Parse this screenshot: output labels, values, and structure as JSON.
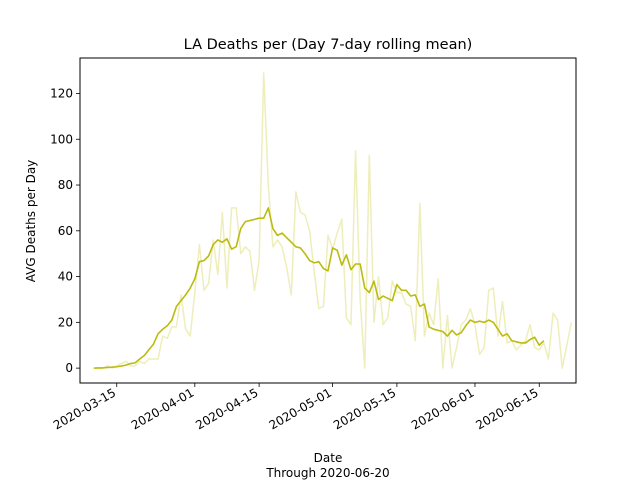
{
  "chart_data": {
    "type": "line",
    "title": "LA Deaths per (Day 7-day rolling mean)",
    "xlabel": "Date",
    "xlabel_sub": "Through 2020-06-20",
    "ylabel": "AVG Deaths per Day",
    "xlim": [
      "2020-03-07",
      "2020-06-23"
    ],
    "ylim": [
      -6.5,
      135.5
    ],
    "x_ticks": [
      "2020-03-15",
      "2020-04-01",
      "2020-04-15",
      "2020-05-01",
      "2020-05-15",
      "2020-06-01",
      "2020-06-15"
    ],
    "y_ticks": [
      0,
      20,
      40,
      60,
      80,
      100,
      120
    ],
    "grid": false,
    "legend": "none",
    "series": [
      {
        "color": "#eeeebb",
        "points": [
          [
            "2020-03-10",
            0
          ],
          [
            "2020-03-11",
            0
          ],
          [
            "2020-03-12",
            0
          ],
          [
            "2020-03-13",
            1
          ],
          [
            "2020-03-14",
            0
          ],
          [
            "2020-03-15",
            1
          ],
          [
            "2020-03-16",
            2
          ],
          [
            "2020-03-17",
            3
          ],
          [
            "2020-03-18",
            1
          ],
          [
            "2020-03-19",
            1
          ],
          [
            "2020-03-20",
            3
          ],
          [
            "2020-03-21",
            2
          ],
          [
            "2020-03-22",
            4
          ],
          [
            "2020-03-23",
            4
          ],
          [
            "2020-03-24",
            4
          ],
          [
            "2020-03-25",
            14
          ],
          [
            "2020-03-26",
            13
          ],
          [
            "2020-03-27",
            18
          ],
          [
            "2020-03-28",
            18
          ],
          [
            "2020-03-29",
            32
          ],
          [
            "2020-03-30",
            17
          ],
          [
            "2020-03-31",
            14
          ],
          [
            "2020-04-01",
            33
          ],
          [
            "2020-04-02",
            54
          ],
          [
            "2020-04-03",
            34
          ],
          [
            "2020-04-04",
            37
          ],
          [
            "2020-04-05",
            56
          ],
          [
            "2020-04-06",
            41
          ],
          [
            "2020-04-07",
            68
          ],
          [
            "2020-04-08",
            35
          ],
          [
            "2020-04-09",
            70
          ],
          [
            "2020-04-10",
            70
          ],
          [
            "2020-04-11",
            50
          ],
          [
            "2020-04-12",
            53
          ],
          [
            "2020-04-13",
            51
          ],
          [
            "2020-04-14",
            34
          ],
          [
            "2020-04-15",
            47
          ],
          [
            "2020-04-16",
            129
          ],
          [
            "2020-04-17",
            80
          ],
          [
            "2020-04-18",
            53
          ],
          [
            "2020-04-19",
            56
          ],
          [
            "2020-04-20",
            53
          ],
          [
            "2020-04-21",
            44
          ],
          [
            "2020-04-22",
            32
          ],
          [
            "2020-04-23",
            77
          ],
          [
            "2020-04-24",
            68
          ],
          [
            "2020-04-25",
            67
          ],
          [
            "2020-04-26",
            60
          ],
          [
            "2020-04-27",
            42
          ],
          [
            "2020-04-28",
            26
          ],
          [
            "2020-04-29",
            27
          ],
          [
            "2020-04-30",
            58
          ],
          [
            "2020-05-01",
            52
          ],
          [
            "2020-05-02",
            59
          ],
          [
            "2020-05-03",
            65
          ],
          [
            "2020-05-04",
            22
          ],
          [
            "2020-05-05",
            19
          ],
          [
            "2020-05-06",
            95
          ],
          [
            "2020-05-07",
            30
          ],
          [
            "2020-05-08",
            0
          ],
          [
            "2020-05-09",
            93
          ],
          [
            "2020-05-10",
            20
          ],
          [
            "2020-05-11",
            40
          ],
          [
            "2020-05-12",
            19
          ],
          [
            "2020-05-13",
            22
          ],
          [
            "2020-05-14",
            38
          ],
          [
            "2020-05-15",
            33
          ],
          [
            "2020-05-16",
            33
          ],
          [
            "2020-05-17",
            28
          ],
          [
            "2020-05-18",
            27
          ],
          [
            "2020-05-19",
            12
          ],
          [
            "2020-05-20",
            72
          ],
          [
            "2020-05-21",
            14
          ],
          [
            "2020-05-22",
            24
          ],
          [
            "2020-05-23",
            19
          ],
          [
            "2020-05-24",
            39
          ],
          [
            "2020-05-25",
            0
          ],
          [
            "2020-05-26",
            23
          ],
          [
            "2020-05-27",
            0
          ],
          [
            "2020-05-28",
            9
          ],
          [
            "2020-05-29",
            19
          ],
          [
            "2020-05-30",
            21
          ],
          [
            "2020-05-31",
            26
          ],
          [
            "2020-06-01",
            19
          ],
          [
            "2020-06-02",
            6
          ],
          [
            "2020-06-03",
            9
          ],
          [
            "2020-06-04",
            34
          ],
          [
            "2020-06-05",
            35
          ],
          [
            "2020-06-06",
            14
          ],
          [
            "2020-06-07",
            29
          ],
          [
            "2020-06-08",
            11
          ],
          [
            "2020-06-09",
            12
          ],
          [
            "2020-06-10",
            8
          ],
          [
            "2020-06-11",
            10
          ],
          [
            "2020-06-12",
            12
          ],
          [
            "2020-06-13",
            19
          ],
          [
            "2020-06-14",
            9
          ],
          [
            "2020-06-15",
            8
          ],
          [
            "2020-06-16",
            11
          ],
          [
            "2020-06-17",
            4
          ],
          [
            "2020-06-18",
            24
          ],
          [
            "2020-06-19",
            21
          ],
          [
            "2020-06-20",
            0
          ],
          [
            "2020-06-21",
            10
          ],
          [
            "2020-06-22",
            20
          ]
        ]
      },
      {
        "color": "#bbbb11",
        "points": [
          [
            "2020-03-10",
            0
          ],
          [
            "2020-03-11",
            0.1
          ],
          [
            "2020-03-12",
            0.1
          ],
          [
            "2020-03-13",
            0.3
          ],
          [
            "2020-03-14",
            0.4
          ],
          [
            "2020-03-15",
            0.6
          ],
          [
            "2020-03-16",
            0.9
          ],
          [
            "2020-03-17",
            1.3
          ],
          [
            "2020-03-18",
            2
          ],
          [
            "2020-03-19",
            2.3
          ],
          [
            "2020-03-20",
            4
          ],
          [
            "2020-03-21",
            5.5
          ],
          [
            "2020-03-22",
            8
          ],
          [
            "2020-03-23",
            10.5
          ],
          [
            "2020-03-24",
            15
          ],
          [
            "2020-03-25",
            17
          ],
          [
            "2020-03-26",
            18.5
          ],
          [
            "2020-03-27",
            21
          ],
          [
            "2020-03-28",
            27
          ],
          [
            "2020-03-29",
            29.5
          ],
          [
            "2020-03-30",
            32
          ],
          [
            "2020-03-31",
            35
          ],
          [
            "2020-04-01",
            39
          ],
          [
            "2020-04-02",
            46.5
          ],
          [
            "2020-04-03",
            47
          ],
          [
            "2020-04-04",
            49
          ],
          [
            "2020-04-05",
            54
          ],
          [
            "2020-04-06",
            56
          ],
          [
            "2020-04-07",
            55
          ],
          [
            "2020-04-08",
            56.5
          ],
          [
            "2020-04-09",
            52
          ],
          [
            "2020-04-10",
            53
          ],
          [
            "2020-04-11",
            61
          ],
          [
            "2020-04-12",
            64
          ],
          [
            "2020-04-13",
            64.5
          ],
          [
            "2020-04-14",
            65
          ],
          [
            "2020-04-15",
            65.5
          ],
          [
            "2020-04-16",
            65.5
          ],
          [
            "2020-04-17",
            70
          ],
          [
            "2020-04-18",
            61
          ],
          [
            "2020-04-19",
            58
          ],
          [
            "2020-04-20",
            59
          ],
          [
            "2020-04-21",
            57
          ],
          [
            "2020-04-22",
            55
          ],
          [
            "2020-04-23",
            53
          ],
          [
            "2020-04-24",
            52.5
          ],
          [
            "2020-04-25",
            50
          ],
          [
            "2020-04-26",
            47
          ],
          [
            "2020-04-27",
            46
          ],
          [
            "2020-04-28",
            46.5
          ],
          [
            "2020-04-29",
            43.5
          ],
          [
            "2020-04-30",
            42.5
          ],
          [
            "2020-05-01",
            52.5
          ],
          [
            "2020-05-02",
            51.5
          ],
          [
            "2020-05-03",
            45
          ],
          [
            "2020-05-04",
            49.5
          ],
          [
            "2020-05-05",
            43
          ],
          [
            "2020-05-06",
            45.5
          ],
          [
            "2020-05-07",
            45.5
          ],
          [
            "2020-05-08",
            35
          ],
          [
            "2020-05-09",
            33
          ],
          [
            "2020-05-10",
            38
          ],
          [
            "2020-05-11",
            30
          ],
          [
            "2020-05-12",
            31.5
          ],
          [
            "2020-05-13",
            30.5
          ],
          [
            "2020-05-14",
            29.5
          ],
          [
            "2020-05-15",
            36.5
          ],
          [
            "2020-05-16",
            34
          ],
          [
            "2020-05-17",
            34
          ],
          [
            "2020-05-18",
            31.5
          ],
          [
            "2020-05-19",
            32
          ],
          [
            "2020-05-20",
            27
          ],
          [
            "2020-05-21",
            28
          ],
          [
            "2020-05-22",
            18
          ],
          [
            "2020-05-23",
            17
          ],
          [
            "2020-05-24",
            16.5
          ],
          [
            "2020-05-25",
            16
          ],
          [
            "2020-05-26",
            14
          ],
          [
            "2020-05-27",
            16.5
          ],
          [
            "2020-05-28",
            14.5
          ],
          [
            "2020-05-29",
            15.5
          ],
          [
            "2020-05-30",
            18.5
          ],
          [
            "2020-05-31",
            21
          ],
          [
            "2020-06-01",
            20
          ],
          [
            "2020-06-02",
            20.5
          ],
          [
            "2020-06-03",
            20
          ],
          [
            "2020-06-04",
            21
          ],
          [
            "2020-06-05",
            20
          ],
          [
            "2020-06-06",
            17
          ],
          [
            "2020-06-07",
            14
          ],
          [
            "2020-06-08",
            15
          ],
          [
            "2020-06-09",
            12
          ],
          [
            "2020-06-10",
            11.5
          ],
          [
            "2020-06-11",
            11
          ],
          [
            "2020-06-12",
            11
          ],
          [
            "2020-06-13",
            12.5
          ],
          [
            "2020-06-14",
            13.5
          ],
          [
            "2020-06-15",
            10
          ],
          [
            "2020-06-16",
            12
          ]
        ]
      }
    ]
  }
}
